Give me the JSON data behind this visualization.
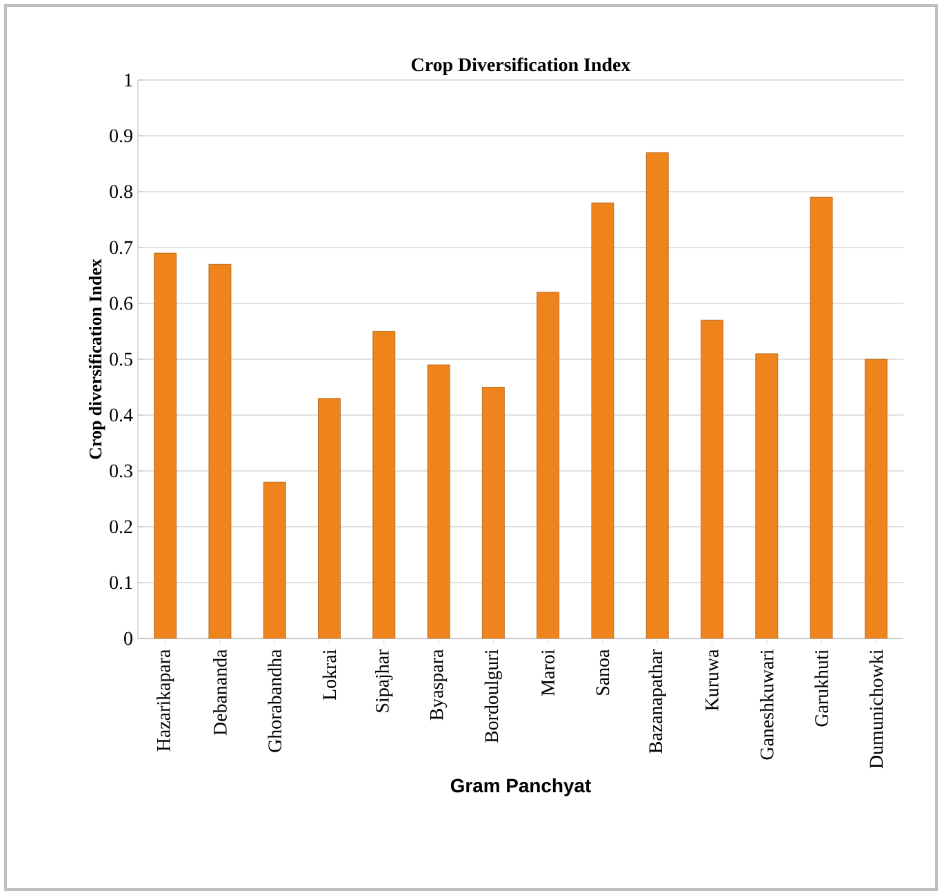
{
  "chart_data": {
    "type": "bar",
    "title": "Crop Diversification Index",
    "xlabel": "Gram Panchyat",
    "ylabel": "Crop  diversification Index",
    "categories": [
      "Hazarikapara",
      "Debananda",
      "Ghorabandha",
      "Lokrai",
      "Sipajhar",
      "Byaspara",
      "Bordoulguri",
      "Maroi",
      "Sanoa",
      "Bazanapathar",
      "Kuruwa",
      "Ganeshkuwari",
      "Garukhuti",
      "Dumunichowki"
    ],
    "values": [
      0.69,
      0.67,
      0.28,
      0.43,
      0.55,
      0.49,
      0.45,
      0.62,
      0.78,
      0.87,
      0.57,
      0.51,
      0.79,
      0.5
    ],
    "color": "#f0841c",
    "ylim": [
      0,
      1
    ],
    "yticks": [
      0,
      0.1,
      0.2,
      0.3,
      0.4,
      0.5,
      0.6,
      0.7,
      0.8,
      0.9,
      1
    ],
    "grid": "y"
  }
}
